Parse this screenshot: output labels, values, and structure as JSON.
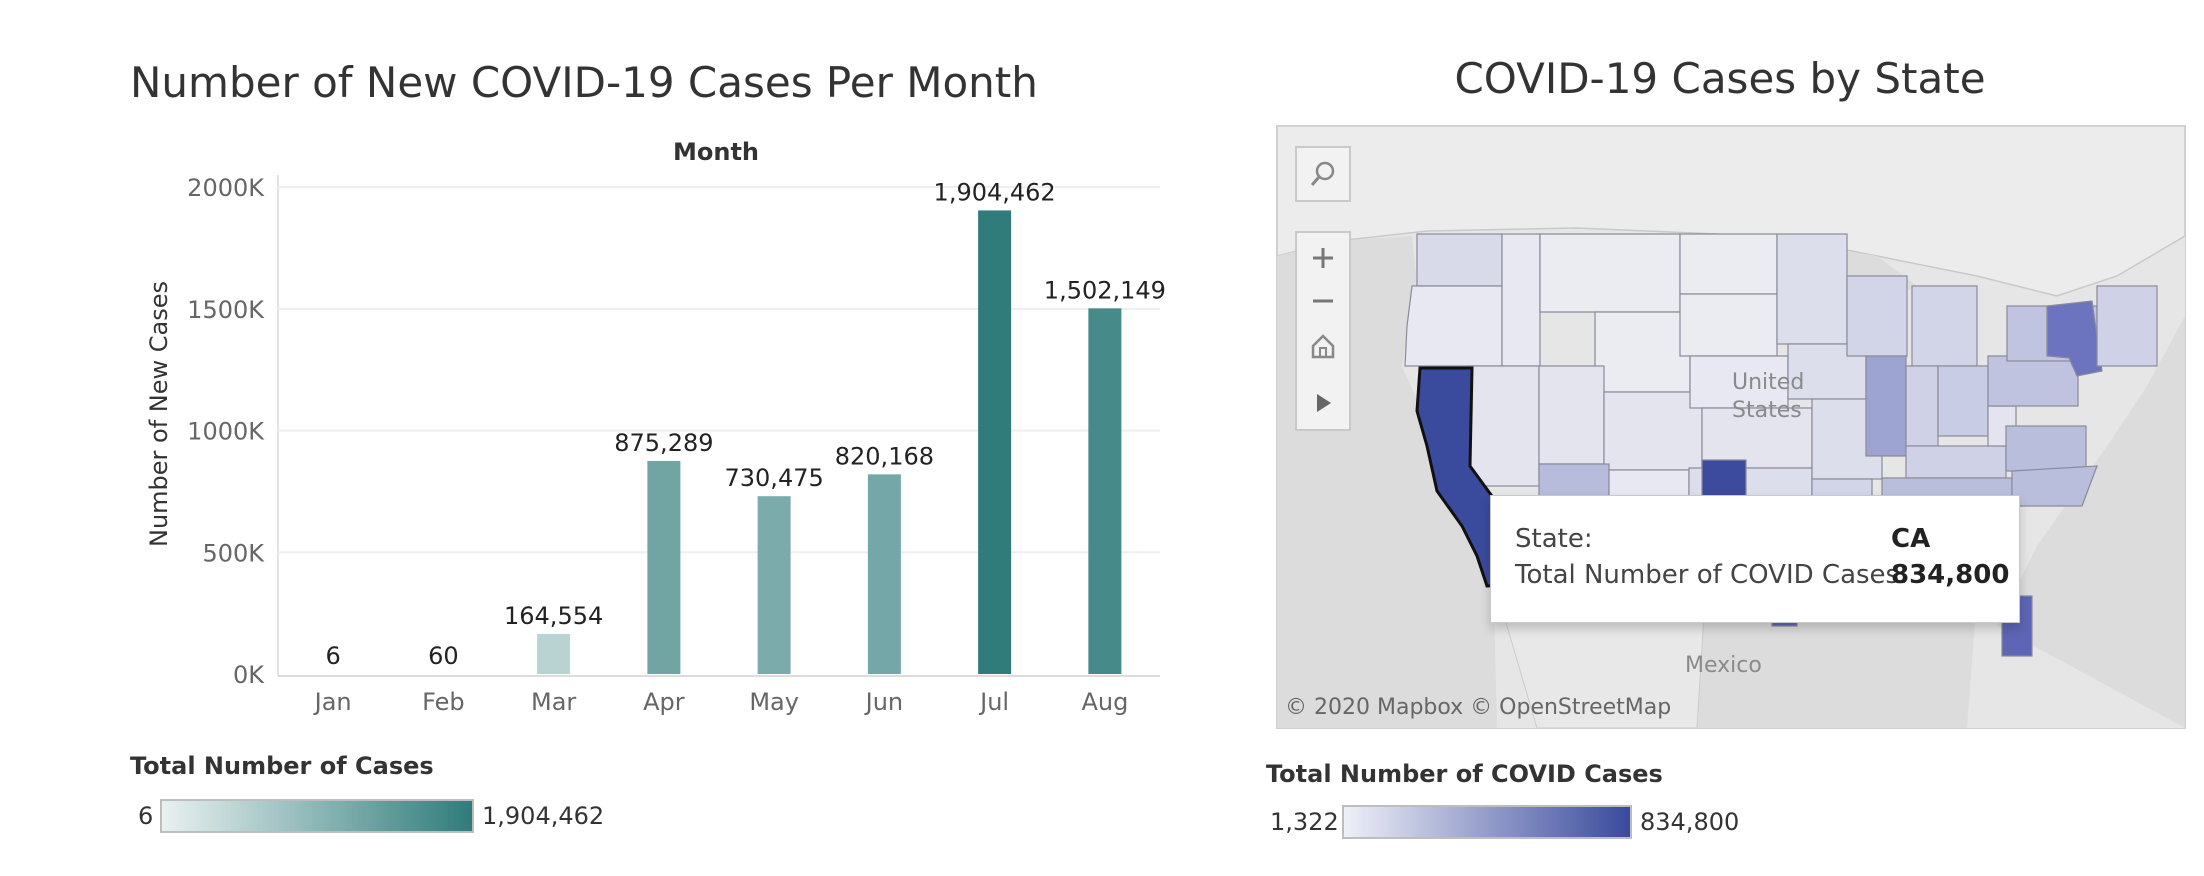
{
  "left_panel": {
    "legend": {
      "title": "Total Number of Cases",
      "min_label": "6",
      "max_label": "1,904,462",
      "ramp_start": "#e9f1f1",
      "ramp_end": "#2f7c7b"
    }
  },
  "right_panel": {
    "title": "COVID-19 Cases by State",
    "map_labels": {
      "country_us": "United States",
      "country_mexico": "Mexico"
    },
    "attribution": "© 2020 Mapbox © OpenStreetMap",
    "toolbar": {
      "search_icon": "search-icon",
      "zoom_in_icon": "plus-icon",
      "zoom_out_icon": "minus-icon",
      "home_icon": "home-icon",
      "play_icon": "play-icon"
    },
    "tooltip": {
      "state_label": "State:",
      "state_value": "CA",
      "cases_label": "Total Number of COVID Cases:",
      "cases_value": "834,800"
    },
    "legend": {
      "title": "Total Number of COVID Cases",
      "min_label": "1,322",
      "max_label": "834,800",
      "ramp_start": "#eef0f7",
      "ramp_end": "#3a4a9c"
    }
  },
  "chart_data": [
    {
      "type": "bar",
      "title": "Number of New COVID-19 Cases Per Month",
      "column_header": "Month",
      "xlabel": "",
      "ylabel": "Number of New Cases",
      "categories": [
        "Jan",
        "Feb",
        "Mar",
        "Apr",
        "May",
        "Jun",
        "Jul",
        "Aug"
      ],
      "values": [
        6,
        60,
        164554,
        875289,
        730475,
        820168,
        1904462,
        1502149
      ],
      "data_labels": [
        "6",
        "60",
        "164,554",
        "875,289",
        "730,475",
        "820,168",
        "1,904,462",
        "1,502,149"
      ],
      "ylim": [
        0,
        2050000
      ],
      "yticks": [
        0,
        500000,
        1000000,
        1500000,
        2000000
      ],
      "ytick_labels": [
        "0K",
        "500K",
        "1000K",
        "1500K",
        "2000K"
      ],
      "grid": true,
      "color_min": "#e9f1f1",
      "color_max": "#2f7c7b"
    }
  ]
}
